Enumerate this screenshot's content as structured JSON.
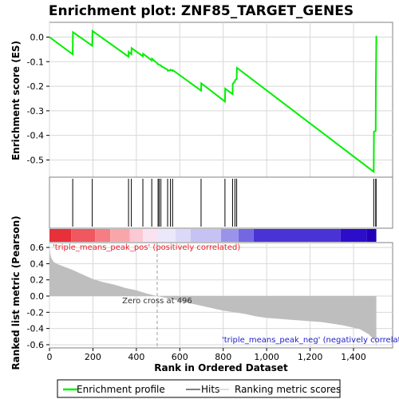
{
  "chart_data": [
    {
      "type": "line",
      "title": "Enrichment plot: ZNF85_TARGET_GENES",
      "ylabel": "Enrichment score (ES)",
      "ylim": [
        -0.57,
        0.06
      ],
      "yticks": [
        0.0,
        -0.1,
        -0.2,
        -0.3,
        -0.4,
        -0.5
      ],
      "ytick_labels": [
        "0.0",
        "-0.1",
        "-0.2",
        "-0.3",
        "-0.4",
        "-0.5"
      ],
      "grid": true,
      "series": [
        {
          "name": "Enrichment profile",
          "color": "#00ee00",
          "x": [
            0,
            107,
            108,
            197,
            198,
            364,
            365,
            377,
            378,
            430,
            431,
            471,
            472,
            500,
            501,
            505,
            506,
            513,
            514,
            544,
            545,
            557,
            558,
            567,
            568,
            698,
            699,
            808,
            809,
            843,
            844,
            854,
            855,
            862,
            863,
            1493,
            1494,
            1502,
            1503,
            1504,
            1505
          ],
          "y": [
            0.0,
            -0.07,
            0.02,
            -0.035,
            0.025,
            -0.08,
            -0.06,
            -0.07,
            -0.045,
            -0.078,
            -0.068,
            -0.095,
            -0.088,
            -0.11,
            -0.112,
            -0.112,
            -0.113,
            -0.115,
            -0.118,
            -0.133,
            -0.137,
            -0.135,
            -0.133,
            -0.137,
            -0.135,
            -0.218,
            -0.188,
            -0.262,
            -0.21,
            -0.232,
            -0.19,
            -0.18,
            -0.175,
            -0.17,
            -0.125,
            -0.548,
            -0.385,
            -0.382,
            -0.205,
            -0.1,
            0.005
          ]
        }
      ]
    },
    {
      "type": "hits",
      "legend": "Hits",
      "hit_ranks": [
        107,
        197,
        364,
        377,
        430,
        471,
        500,
        505,
        513,
        544,
        557,
        567,
        698,
        808,
        843,
        854,
        862,
        1493,
        1502,
        1504
      ]
    },
    {
      "type": "area",
      "xlabel": "Rank in Ordered Dataset",
      "ylabel": "Ranked list metric (Pearson)",
      "ylim": [
        -0.64,
        0.66
      ],
      "yticks": [
        0.6,
        0.4,
        0.2,
        0.0,
        -0.2,
        -0.4,
        -0.6
      ],
      "ytick_labels": [
        "0.6",
        "0.4",
        "0.2",
        "0.0",
        "-0.2",
        "-0.4",
        "-0.6"
      ],
      "xlim": [
        0,
        1580
      ],
      "xticks": [
        0,
        200,
        400,
        600,
        800,
        1000,
        1200,
        1400
      ],
      "xtick_labels": [
        "0",
        "200",
        "400",
        "600",
        "800",
        "1,000",
        "1,200",
        "1,400"
      ],
      "series": [
        {
          "name": "Ranking metric scores",
          "color": "#bebebe",
          "x": [
            0,
            2,
            5,
            10,
            20,
            40,
            70,
            100,
            150,
            200,
            250,
            300,
            350,
            400,
            450,
            496,
            550,
            600,
            650,
            700,
            750,
            800,
            850,
            900,
            950,
            1000,
            1050,
            1100,
            1150,
            1200,
            1250,
            1300,
            1350,
            1400,
            1430,
            1450,
            1470,
            1480,
            1490,
            1500,
            1505
          ],
          "y": [
            0.6,
            0.55,
            0.5,
            0.46,
            0.42,
            0.39,
            0.36,
            0.33,
            0.27,
            0.21,
            0.17,
            0.14,
            0.1,
            0.07,
            0.03,
            0.0,
            -0.03,
            -0.06,
            -0.09,
            -0.12,
            -0.15,
            -0.18,
            -0.2,
            -0.22,
            -0.25,
            -0.27,
            -0.28,
            -0.29,
            -0.3,
            -0.31,
            -0.32,
            -0.34,
            -0.36,
            -0.39,
            -0.41,
            -0.44,
            -0.47,
            -0.5,
            -0.52,
            -0.55,
            -0.63
          ]
        }
      ],
      "annotations": {
        "pos_label": "'triple_means_peak_pos' (positively correlated)",
        "neg_label": "'triple_means_peak_neg' (negatively correlated)",
        "zero_cross": "Zero cross at 496",
        "zero_cross_rank": 496
      }
    }
  ],
  "heat_bar": {
    "segments": [
      {
        "from": 0,
        "to": 100,
        "color": "#e8303a"
      },
      {
        "from": 100,
        "to": 210,
        "color": "#f0575f"
      },
      {
        "from": 210,
        "to": 280,
        "color": "#f57d83"
      },
      {
        "from": 280,
        "to": 370,
        "color": "#f9a6aa"
      },
      {
        "from": 370,
        "to": 430,
        "color": "#fcc8d4"
      },
      {
        "from": 430,
        "to": 496,
        "color": "#fbe2f0"
      },
      {
        "from": 496,
        "to": 580,
        "color": "#ece8fb"
      },
      {
        "from": 580,
        "to": 650,
        "color": "#dcd8f8"
      },
      {
        "from": 650,
        "to": 790,
        "color": "#c6c2f4"
      },
      {
        "from": 790,
        "to": 870,
        "color": "#9a93ea"
      },
      {
        "from": 870,
        "to": 940,
        "color": "#7467e2"
      },
      {
        "from": 940,
        "to": 1340,
        "color": "#4a33d6"
      },
      {
        "from": 1340,
        "to": 1460,
        "color": "#2c0dca"
      },
      {
        "from": 1460,
        "to": 1505,
        "color": "#2400b8"
      }
    ]
  },
  "legend": {
    "items": [
      {
        "label": "Enrichment profile",
        "color": "#00ee00"
      },
      {
        "label": "Hits",
        "color": "#000000"
      },
      {
        "label": "Ranking metric scores",
        "color": "#bebebe"
      }
    ]
  }
}
